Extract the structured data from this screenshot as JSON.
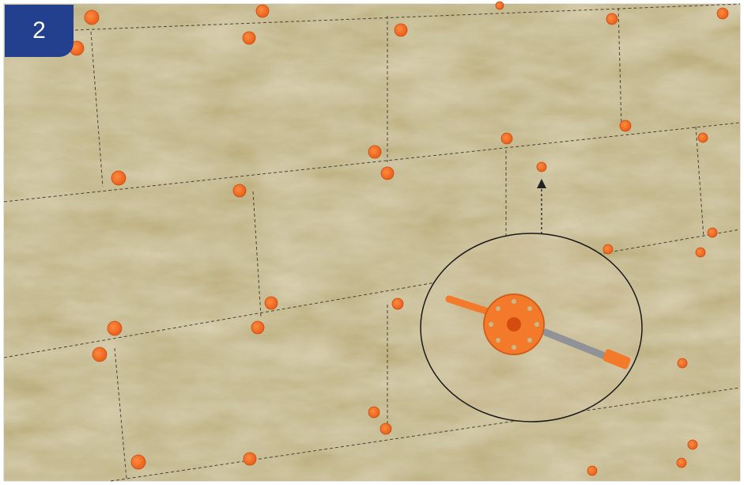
{
  "badge": {
    "label": "2"
  }
}
